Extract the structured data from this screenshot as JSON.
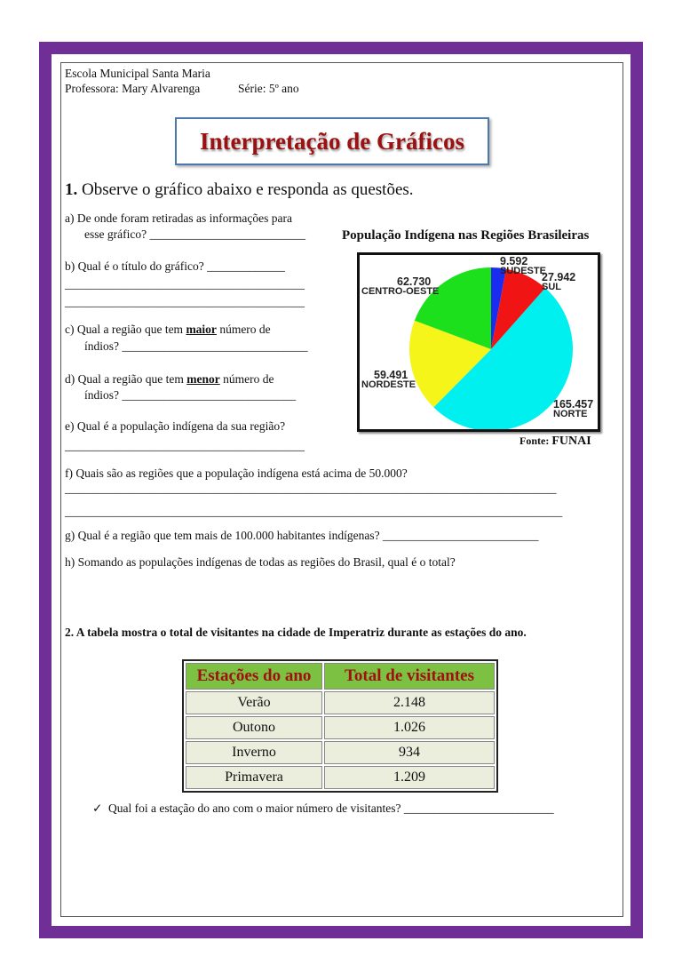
{
  "header": {
    "school": "Escola Municipal Santa Maria",
    "teacher": "Professora: Mary Alvarenga",
    "grade": "Série: 5º ano"
  },
  "title": "Interpretação de Gráficos",
  "q1": {
    "number": "1.",
    "text": "Observe o gráfico abaixo e responda as questões.",
    "a1": "a)  De onde foram retiradas as informações para",
    "a2": "esse gráfico? __________________________",
    "b1": "b)   Qual é o título do gráfico? _____________",
    "b2": "________________________________________",
    "b3": "________________________________________",
    "c1": "c)   Qual  a  região  que  tem",
    "c_bold": "maior",
    "c1b": "número  de",
    "c2": "índios? _______________________________",
    "d1": "d)   Qual a região que tem",
    "d_bold": "menor",
    "d1b": "número de",
    "d2": "índios? _____________________________",
    "e1": "e)   Qual é a população indígena da sua região?",
    "e2": "________________________________________",
    "f": "f)    Quais são as regiões que a população indígena está acima de 50.000?",
    "f2": "__________________________________________________________________________________",
    "f3": "___________________________________________________________________________________",
    "g": "g)    Qual é a  região que tem mais de 100.000 habitantes indígenas? __________________________",
    "h": "h)    Somando  as populações indígenas de todas as regiões do Brasil, qual é  o total?"
  },
  "chart_data": {
    "type": "pie",
    "title": "População Indígena  nas Regiões Brasileiras",
    "source_label": "Fonte:",
    "source": "FUNAI",
    "slices": [
      {
        "label": "SUDESTE",
        "value": 9592,
        "display": "9.592",
        "color": "#1a2cf0"
      },
      {
        "label": "SUL",
        "value": 27942,
        "display": "27.942",
        "color": "#f01414"
      },
      {
        "label": "NORTE",
        "value": 165457,
        "display": "165.457",
        "color": "#00f0f0"
      },
      {
        "label": "NORDESTE",
        "value": 59491,
        "display": "59.491",
        "color": "#f5f51a"
      },
      {
        "label": "CENTRO-OESTE",
        "value": 62730,
        "display": "62.730",
        "color": "#1de01d"
      }
    ]
  },
  "q2": {
    "text": "2.   A tabela mostra o total de visitantes na cidade de Imperatriz  durante as estações do ano.",
    "headers": [
      "Estações do ano",
      "Total de visitantes"
    ],
    "rows": [
      [
        "Verão",
        "2.148"
      ],
      [
        "Outono",
        "1.026"
      ],
      [
        "Inverno",
        "934"
      ],
      [
        "Primavera",
        "1.209"
      ]
    ],
    "check": "✓",
    "question": "Qual foi a estação do ano com o maior número de visitantes? _________________________"
  }
}
